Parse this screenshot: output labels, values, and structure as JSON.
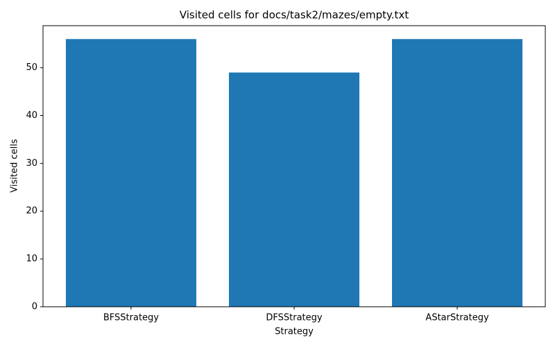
{
  "chart_data": {
    "type": "bar",
    "title": "Visited cells for docs/task2/mazes/empty.txt",
    "x_label": "Strategy",
    "y_label": "Visited cells",
    "categories": [
      "BFSStrategy",
      "DFSStrategy",
      "AStarStrategy"
    ],
    "values": [
      56,
      49,
      56
    ],
    "color": "#1f77b4",
    "ylim": [
      0,
      58.8
    ],
    "yticks": [
      0,
      10,
      20,
      30,
      40,
      50
    ],
    "grid": false
  }
}
